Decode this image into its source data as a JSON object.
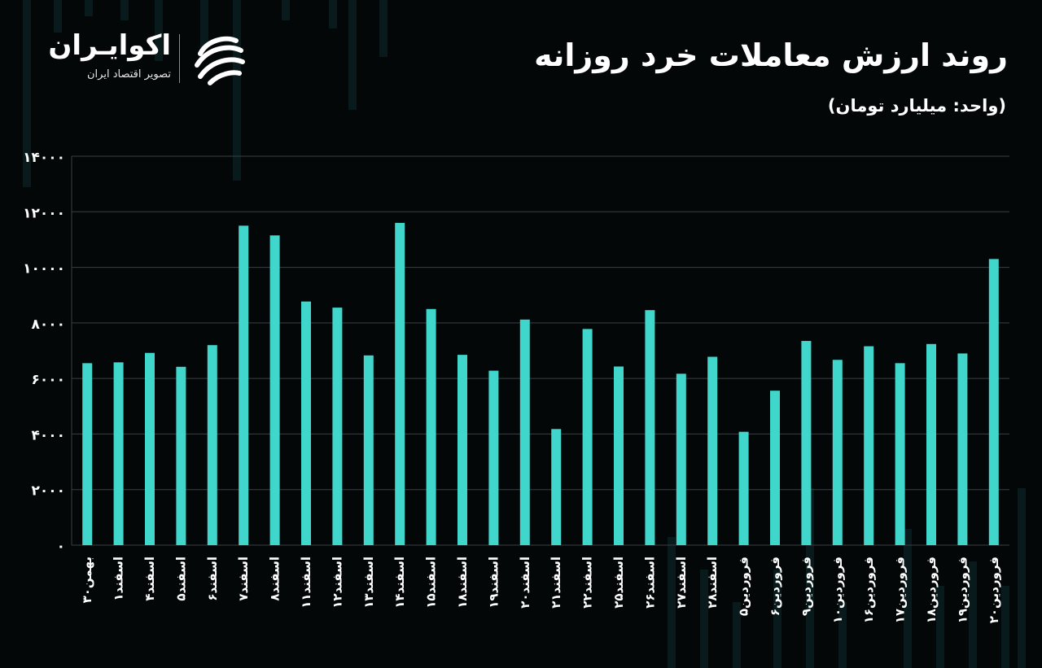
{
  "header": {
    "title": "روند ارزش معاملات خرد روزانه",
    "subtitle": "(واحد: میلیارد تومان)"
  },
  "brand": {
    "name": "اکوایـران",
    "tagline": "تصویر اقتصاد ایران"
  },
  "colors": {
    "background": "#040708",
    "bar": "#40d6cc",
    "grid": "#3a3f44",
    "text": "#ffffff"
  },
  "chart_data": {
    "type": "bar",
    "title": "روند ارزش معاملات خرد روزانه",
    "ylabel": "(واحد: میلیارد تومان)",
    "ylim": [
      0,
      14000
    ],
    "yticks": [
      0,
      2000,
      4000,
      6000,
      8000,
      10000,
      12000,
      14000
    ],
    "ytick_labels": [
      "۰",
      "۲۰۰۰",
      "۴۰۰۰",
      "۶۰۰۰",
      "۸۰۰۰",
      "۱۰۰۰۰",
      "۱۲۰۰۰",
      "۱۴۰۰۰"
    ],
    "grid": true,
    "categories": [
      "بهمن۳۰",
      "اسفند۱",
      "اسفند۴",
      "اسفند۵",
      "اسفند۶",
      "اسفند۷",
      "اسفند۸",
      "اسفند۱۱",
      "اسفند۱۲",
      "اسفند۱۳",
      "اسفند۱۴",
      "اسفند۱۵",
      "اسفند۱۸",
      "اسفند۱۹",
      "اسفند۲۰",
      "اسفند۲۱",
      "اسفند۲۲",
      "اسفند۲۵",
      "اسفند۲۶",
      "اسفند۲۷",
      "اسفند۲۸",
      "فروردین۵",
      "فروردین۶",
      "فروردین۹",
      "فروردین۱۰",
      "فروردین۱۶",
      "فروردین۱۷",
      "فروردین۱۸",
      "فروردین۱۹",
      "فروردین۲۰"
    ],
    "values": [
      6550,
      6580,
      6920,
      6420,
      7200,
      11500,
      11150,
      8770,
      8550,
      6830,
      11600,
      8500,
      6850,
      6280,
      8120,
      4180,
      7780,
      6430,
      8460,
      6170,
      6780,
      4080,
      5560,
      7350,
      6670,
      7160,
      6550,
      7240,
      6900,
      10300
    ]
  }
}
